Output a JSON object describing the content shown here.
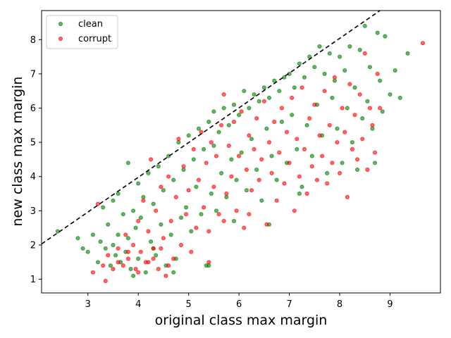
{
  "chart_data": {
    "type": "scatter",
    "title": "",
    "xlabel": "original class max margin",
    "ylabel": "new class max margin",
    "xlim": [
      2.08,
      10.0
    ],
    "ylim": [
      0.6,
      8.85
    ],
    "xticks": [
      "3",
      "4",
      "5",
      "6",
      "7",
      "8",
      "9"
    ],
    "yticks": [
      "1",
      "2",
      "3",
      "4",
      "5",
      "6",
      "7",
      "8"
    ],
    "grid": false,
    "legend_position": "top-left",
    "reference_line": {
      "style": "dashed",
      "color": "#000000",
      "points": [
        [
          2.08,
          2.03
        ],
        [
          8.8,
          8.85
        ]
      ]
    },
    "series": [
      {
        "name": "clean",
        "color": "#008000",
        "points": [
          [
            2.4,
            2.4
          ],
          [
            2.8,
            2.2
          ],
          [
            2.9,
            1.9
          ],
          [
            3.0,
            1.8
          ],
          [
            3.1,
            2.3
          ],
          [
            3.2,
            1.5
          ],
          [
            3.25,
            2.1
          ],
          [
            3.3,
            3.1
          ],
          [
            3.35,
            1.9
          ],
          [
            3.4,
            2.6
          ],
          [
            3.45,
            1.4
          ],
          [
            3.5,
            2.0
          ],
          [
            3.5,
            3.3
          ],
          [
            3.55,
            1.7
          ],
          [
            3.6,
            2.3
          ],
          [
            3.6,
            3.5
          ],
          [
            3.65,
            1.5
          ],
          [
            3.7,
            2.9
          ],
          [
            3.75,
            1.8
          ],
          [
            3.8,
            4.4
          ],
          [
            3.8,
            2.2
          ],
          [
            3.85,
            1.3
          ],
          [
            3.9,
            3.0
          ],
          [
            3.95,
            2.5
          ],
          [
            4.0,
            3.8
          ],
          [
            4.0,
            1.6
          ],
          [
            4.05,
            2.8
          ],
          [
            4.1,
            3.4
          ],
          [
            4.15,
            1.2
          ],
          [
            4.2,
            4.1
          ],
          [
            4.25,
            2.1
          ],
          [
            4.3,
            3.2
          ],
          [
            4.35,
            1.7
          ],
          [
            4.4,
            4.3
          ],
          [
            4.45,
            2.6
          ],
          [
            4.5,
            3.6
          ],
          [
            4.55,
            1.4
          ],
          [
            4.6,
            4.6
          ],
          [
            4.65,
            2.3
          ],
          [
            4.7,
            3.9
          ],
          [
            4.75,
            1.6
          ],
          [
            4.8,
            5.0
          ],
          [
            4.85,
            2.8
          ],
          [
            4.9,
            4.2
          ],
          [
            4.95,
            3.1
          ],
          [
            5.0,
            5.2
          ],
          [
            5.05,
            2.4
          ],
          [
            5.1,
            4.5
          ],
          [
            5.15,
            3.7
          ],
          [
            5.2,
            5.4
          ],
          [
            5.25,
            2.9
          ],
          [
            5.3,
            4.8
          ],
          [
            5.35,
            1.4
          ],
          [
            5.4,
            5.6
          ],
          [
            5.45,
            3.5
          ],
          [
            5.5,
            4.9
          ],
          [
            5.5,
            5.9
          ],
          [
            5.55,
            3.0
          ],
          [
            5.6,
            5.3
          ],
          [
            5.65,
            4.1
          ],
          [
            5.7,
            6.0
          ],
          [
            5.75,
            3.4
          ],
          [
            5.8,
            5.5
          ],
          [
            5.85,
            4.5
          ],
          [
            5.9,
            6.1
          ],
          [
            5.95,
            3.9
          ],
          [
            6.0,
            5.8
          ],
          [
            6.05,
            4.7
          ],
          [
            6.1,
            6.5
          ],
          [
            6.15,
            3.6
          ],
          [
            6.2,
            6.0
          ],
          [
            6.25,
            5.1
          ],
          [
            6.3,
            6.4
          ],
          [
            6.35,
            4.2
          ],
          [
            6.4,
            6.2
          ],
          [
            6.45,
            3.3
          ],
          [
            6.5,
            6.6
          ],
          [
            6.55,
            5.4
          ],
          [
            6.6,
            6.3
          ],
          [
            6.65,
            4.6
          ],
          [
            6.7,
            6.8
          ],
          [
            6.75,
            3.9
          ],
          [
            6.8,
            6.5
          ],
          [
            6.85,
            5.6
          ],
          [
            6.9,
            6.9
          ],
          [
            6.95,
            4.4
          ],
          [
            7.0,
            7.0
          ],
          [
            7.05,
            5.8
          ],
          [
            7.1,
            6.6
          ],
          [
            7.15,
            4.8
          ],
          [
            7.2,
            7.3
          ],
          [
            7.25,
            3.7
          ],
          [
            7.3,
            6.9
          ],
          [
            7.35,
            5.5
          ],
          [
            7.4,
            7.5
          ],
          [
            7.45,
            4.6
          ],
          [
            7.5,
            7.2
          ],
          [
            7.55,
            6.1
          ],
          [
            7.6,
            7.8
          ],
          [
            7.65,
            5.2
          ],
          [
            7.7,
            7.0
          ],
          [
            7.75,
            4.1
          ],
          [
            7.8,
            7.6
          ],
          [
            7.85,
            6.3
          ],
          [
            7.9,
            6.8
          ],
          [
            7.95,
            5.4
          ],
          [
            8.0,
            7.5
          ],
          [
            8.05,
            4.4
          ],
          [
            8.1,
            7.1
          ],
          [
            8.15,
            6.0
          ],
          [
            8.2,
            7.8
          ],
          [
            8.25,
            5.0
          ],
          [
            8.3,
            6.6
          ],
          [
            8.35,
            4.2
          ],
          [
            8.4,
            7.7
          ],
          [
            8.45,
            5.7
          ],
          [
            8.5,
            8.4
          ],
          [
            8.55,
            6.2
          ],
          [
            8.6,
            7.2
          ],
          [
            8.65,
            5.4
          ],
          [
            8.7,
            4.4
          ],
          [
            8.75,
            8.2
          ],
          [
            8.8,
            6.8
          ],
          [
            8.85,
            5.9
          ],
          [
            8.9,
            8.1
          ],
          [
            9.0,
            6.4
          ],
          [
            9.1,
            7.1
          ],
          [
            9.2,
            6.3
          ],
          [
            9.35,
            7.6
          ],
          [
            5.4,
            1.4
          ],
          [
            6.6,
            2.6
          ],
          [
            7.2,
            3.5
          ],
          [
            4.7,
            1.2
          ],
          [
            5.9,
            2.7
          ],
          [
            3.9,
            1.1
          ],
          [
            4.3,
            1.9
          ]
        ]
      },
      {
        "name": "corrupt",
        "color": "#ff0000",
        "points": [
          [
            3.1,
            1.2
          ],
          [
            3.2,
            3.2
          ],
          [
            3.3,
            1.4
          ],
          [
            3.35,
            0.95
          ],
          [
            3.4,
            1.7
          ],
          [
            3.5,
            1.3
          ],
          [
            3.6,
            1.9
          ],
          [
            3.7,
            1.4
          ],
          [
            3.75,
            2.3
          ],
          [
            3.8,
            1.6
          ],
          [
            3.9,
            2.0
          ],
          [
            3.95,
            1.3
          ],
          [
            4.0,
            2.7
          ],
          [
            4.05,
            1.8
          ],
          [
            4.1,
            3.3
          ],
          [
            4.15,
            1.5
          ],
          [
            4.2,
            2.4
          ],
          [
            4.25,
            4.5
          ],
          [
            4.3,
            1.9
          ],
          [
            4.35,
            3.0
          ],
          [
            4.4,
            1.3
          ],
          [
            4.45,
            3.7
          ],
          [
            4.5,
            2.2
          ],
          [
            4.55,
            1.1
          ],
          [
            4.6,
            4.0
          ],
          [
            4.65,
            2.7
          ],
          [
            4.7,
            1.6
          ],
          [
            4.75,
            3.4
          ],
          [
            4.8,
            5.1
          ],
          [
            4.85,
            2.0
          ],
          [
            4.9,
            4.3
          ],
          [
            4.95,
            2.9
          ],
          [
            5.0,
            3.6
          ],
          [
            5.05,
            1.8
          ],
          [
            5.1,
            4.8
          ],
          [
            5.15,
            2.5
          ],
          [
            5.2,
            3.9
          ],
          [
            5.25,
            5.3
          ],
          [
            5.3,
            3.1
          ],
          [
            5.35,
            4.4
          ],
          [
            5.4,
            2.4
          ],
          [
            5.45,
            5.0
          ],
          [
            5.5,
            3.7
          ],
          [
            5.55,
            4.6
          ],
          [
            5.6,
            2.9
          ],
          [
            5.65,
            5.5
          ],
          [
            5.7,
            6.4
          ],
          [
            5.75,
            3.5
          ],
          [
            5.8,
            4.9
          ],
          [
            5.85,
            4.0
          ],
          [
            5.9,
            5.6
          ],
          [
            5.95,
            3.0
          ],
          [
            6.0,
            4.6
          ],
          [
            6.05,
            5.9
          ],
          [
            6.1,
            2.5
          ],
          [
            6.15,
            4.2
          ],
          [
            6.2,
            5.2
          ],
          [
            6.25,
            3.6
          ],
          [
            6.3,
            4.8
          ],
          [
            6.35,
            5.7
          ],
          [
            6.4,
            3.9
          ],
          [
            6.45,
            4.5
          ],
          [
            6.5,
            6.2
          ],
          [
            6.55,
            2.6
          ],
          [
            6.6,
            5.0
          ],
          [
            6.65,
            4.1
          ],
          [
            6.7,
            5.6
          ],
          [
            6.75,
            3.3
          ],
          [
            6.8,
            4.7
          ],
          [
            6.85,
            6.0
          ],
          [
            6.9,
            3.8
          ],
          [
            6.95,
            5.3
          ],
          [
            7.0,
            4.4
          ],
          [
            7.05,
            6.3
          ],
          [
            7.1,
            3.0
          ],
          [
            7.15,
            5.1
          ],
          [
            7.2,
            4.0
          ],
          [
            7.25,
            6.6
          ],
          [
            7.3,
            4.8
          ],
          [
            7.35,
            3.5
          ],
          [
            7.4,
            5.7
          ],
          [
            7.45,
            4.3
          ],
          [
            7.5,
            6.1
          ],
          [
            7.55,
            3.9
          ],
          [
            7.6,
            5.2
          ],
          [
            7.65,
            4.6
          ],
          [
            7.7,
            6.5
          ],
          [
            7.75,
            3.8
          ],
          [
            7.8,
            5.5
          ],
          [
            7.85,
            4.4
          ],
          [
            7.9,
            6.9
          ],
          [
            7.95,
            5.0
          ],
          [
            8.0,
            4.1
          ],
          [
            8.05,
            6.0
          ],
          [
            8.1,
            5.3
          ],
          [
            8.15,
            3.4
          ],
          [
            8.2,
            6.7
          ],
          [
            8.25,
            4.8
          ],
          [
            8.3,
            5.8
          ],
          [
            8.35,
            4.5
          ],
          [
            8.4,
            6.4
          ],
          [
            8.45,
            5.1
          ],
          [
            8.5,
            7.6
          ],
          [
            8.55,
            4.2
          ],
          [
            8.6,
            6.0
          ],
          [
            8.65,
            5.5
          ],
          [
            8.7,
            4.7
          ],
          [
            8.75,
            7.0
          ],
          [
            8.8,
            6.0
          ],
          [
            9.65,
            7.9
          ],
          [
            5.4,
            1.5
          ],
          [
            4.6,
            1.4
          ],
          [
            3.6,
            1.5
          ],
          [
            4.0,
            1.2
          ],
          [
            4.3,
            1.6
          ],
          [
            3.8,
            1.8
          ],
          [
            6.2,
            2.9
          ],
          [
            5.7,
            2.7
          ],
          [
            4.2,
            1.5
          ],
          [
            4.45,
            1.9
          ]
        ]
      }
    ]
  }
}
